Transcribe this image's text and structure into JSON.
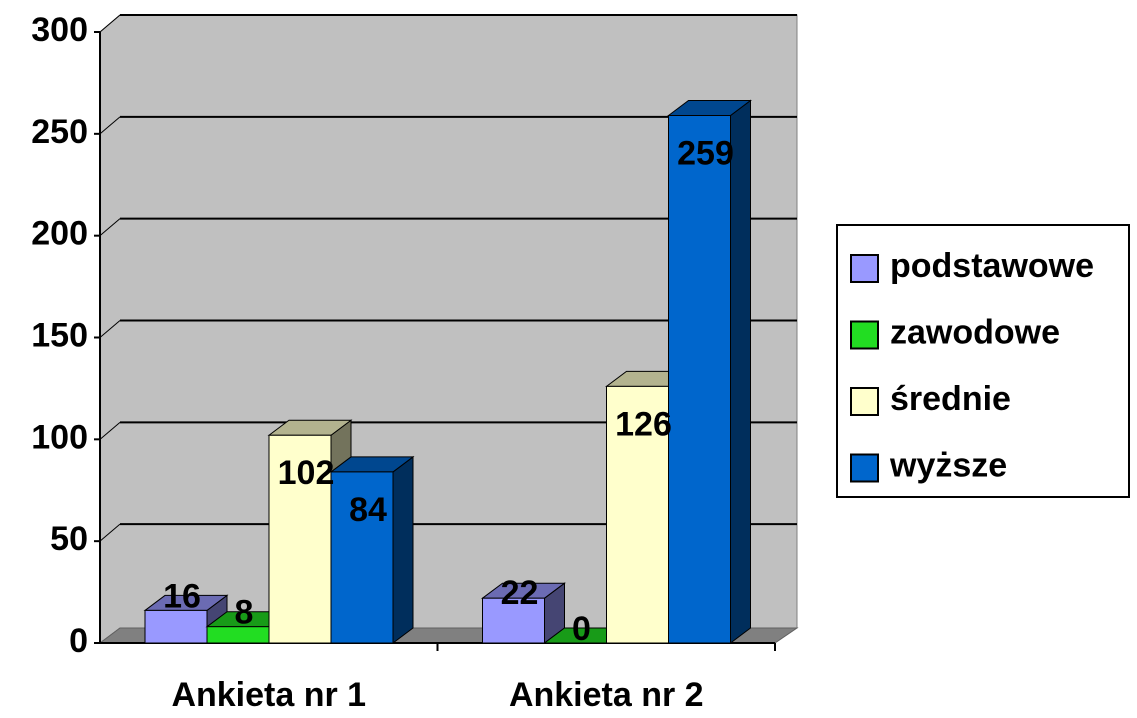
{
  "chart_data": {
    "type": "bar3d",
    "categories": [
      "Ankieta nr 1",
      "Ankieta nr 2"
    ],
    "series": [
      {
        "name": "podstawowe",
        "color": "#9999ff",
        "values": [
          16,
          22
        ]
      },
      {
        "name": "zawodowe",
        "color": "#22dd22",
        "values": [
          8,
          0
        ]
      },
      {
        "name": "średnie",
        "color": "#ffffcc",
        "values": [
          102,
          126
        ]
      },
      {
        "name": "wyższe",
        "color": "#0066cc",
        "values": [
          84,
          259
        ]
      }
    ],
    "ylim": [
      0,
      300
    ],
    "yticks": [
      0,
      50,
      100,
      150,
      200,
      250,
      300
    ],
    "grid": true,
    "legend": "right"
  }
}
